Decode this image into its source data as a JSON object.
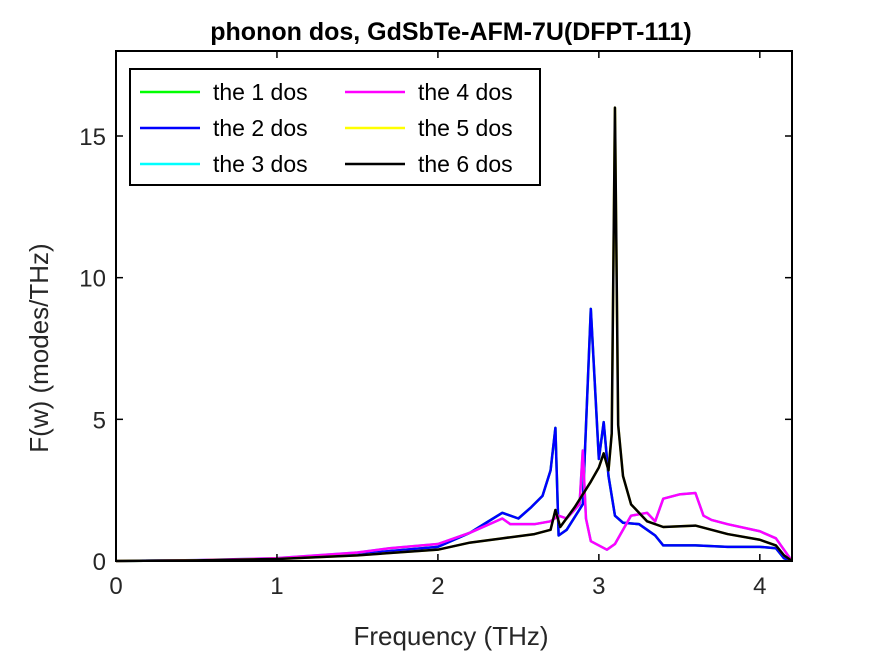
{
  "chart_data": {
    "type": "line",
    "title": "phonon dos, GdSbTe-AFM-7U(DFPT-111)",
    "xlabel": "Frequency (THz)",
    "ylabel": "F(w) (modes/THz)",
    "xlim": [
      0,
      4.2
    ],
    "ylim": [
      0,
      18
    ],
    "xticks": [
      0,
      1,
      2,
      3,
      4
    ],
    "yticks": [
      0,
      5,
      10,
      15
    ],
    "grid": false,
    "legend_position": "top-left",
    "series": [
      {
        "name": "the 1 dos",
        "color": "#00ff00",
        "x": [
          0,
          0.5,
          1,
          1.5,
          2,
          2.2,
          2.3,
          2.4,
          2.5,
          2.58,
          2.65,
          2.7,
          2.73,
          2.75,
          2.8,
          2.9,
          2.95,
          3.0,
          3.03,
          3.06,
          3.1,
          3.15,
          3.25,
          3.3,
          3.35,
          3.4,
          3.6,
          3.8,
          4.0,
          4.1,
          4.15,
          4.2
        ],
        "y": [
          0,
          0.02,
          0.08,
          0.25,
          0.5,
          1.0,
          1.35,
          1.7,
          1.5,
          1.9,
          2.3,
          3.2,
          4.7,
          0.9,
          1.1,
          2.0,
          8.9,
          3.6,
          4.9,
          3.0,
          1.6,
          1.35,
          1.3,
          1.1,
          0.9,
          0.55,
          0.55,
          0.5,
          0.5,
          0.45,
          0.1,
          0
        ]
      },
      {
        "name": "the 2 dos",
        "color": "#0000ff",
        "x": [
          0,
          0.5,
          1,
          1.5,
          2,
          2.2,
          2.3,
          2.4,
          2.5,
          2.58,
          2.65,
          2.7,
          2.73,
          2.75,
          2.8,
          2.9,
          2.95,
          3.0,
          3.03,
          3.06,
          3.1,
          3.15,
          3.25,
          3.3,
          3.35,
          3.4,
          3.6,
          3.8,
          4.0,
          4.1,
          4.15,
          4.2
        ],
        "y": [
          0,
          0.02,
          0.08,
          0.25,
          0.5,
          1.0,
          1.35,
          1.7,
          1.5,
          1.9,
          2.3,
          3.2,
          4.7,
          0.9,
          1.1,
          2.0,
          8.9,
          3.6,
          4.9,
          3.0,
          1.6,
          1.35,
          1.3,
          1.1,
          0.9,
          0.55,
          0.55,
          0.5,
          0.5,
          0.45,
          0.1,
          0
        ]
      },
      {
        "name": "the 3 dos",
        "color": "#00ffff",
        "x": [
          0,
          0.5,
          1,
          1.5,
          1.7,
          2,
          2.2,
          2.4,
          2.45,
          2.6,
          2.7,
          2.75,
          2.8,
          2.88,
          2.9,
          2.92,
          2.95,
          3.05,
          3.1,
          3.2,
          3.3,
          3.35,
          3.4,
          3.5,
          3.6,
          3.65,
          3.7,
          3.8,
          4.0,
          4.1,
          4.15,
          4.2
        ],
        "y": [
          0,
          0.03,
          0.1,
          0.3,
          0.45,
          0.6,
          1.0,
          1.5,
          1.3,
          1.3,
          1.4,
          1.6,
          1.5,
          2.0,
          3.9,
          1.5,
          0.7,
          0.4,
          0.6,
          1.6,
          1.7,
          1.4,
          2.2,
          2.35,
          2.4,
          1.6,
          1.45,
          1.3,
          1.05,
          0.8,
          0.4,
          0
        ]
      },
      {
        "name": "the 4 dos",
        "color": "#ff00ff",
        "x": [
          0,
          0.5,
          1,
          1.5,
          1.7,
          2,
          2.2,
          2.4,
          2.45,
          2.6,
          2.7,
          2.75,
          2.8,
          2.88,
          2.9,
          2.92,
          2.95,
          3.05,
          3.1,
          3.2,
          3.3,
          3.35,
          3.4,
          3.5,
          3.6,
          3.65,
          3.7,
          3.8,
          4.0,
          4.1,
          4.15,
          4.2
        ],
        "y": [
          0,
          0.03,
          0.1,
          0.3,
          0.45,
          0.6,
          1.0,
          1.5,
          1.3,
          1.3,
          1.4,
          1.6,
          1.5,
          2.0,
          3.9,
          1.5,
          0.7,
          0.4,
          0.6,
          1.6,
          1.7,
          1.4,
          2.2,
          2.35,
          2.4,
          1.6,
          1.45,
          1.3,
          1.05,
          0.8,
          0.4,
          0
        ]
      },
      {
        "name": "the 5 dos",
        "color": "#ffff00",
        "x": [
          0,
          0.5,
          1,
          1.5,
          2,
          2.2,
          2.4,
          2.6,
          2.7,
          2.73,
          2.76,
          2.85,
          2.95,
          3.0,
          3.03,
          3.06,
          3.08,
          3.1,
          3.12,
          3.15,
          3.2,
          3.3,
          3.4,
          3.6,
          3.8,
          4.0,
          4.1,
          4.15,
          4.2
        ],
        "y": [
          0,
          0.02,
          0.07,
          0.2,
          0.4,
          0.65,
          0.8,
          0.95,
          1.1,
          1.8,
          1.2,
          1.9,
          2.8,
          3.3,
          3.8,
          3.2,
          4.5,
          16.0,
          4.8,
          3.0,
          2.0,
          1.4,
          1.2,
          1.25,
          0.95,
          0.75,
          0.55,
          0.2,
          0
        ]
      },
      {
        "name": "the 6 dos",
        "color": "#000000",
        "x": [
          0,
          0.5,
          1,
          1.5,
          2,
          2.2,
          2.4,
          2.6,
          2.7,
          2.73,
          2.76,
          2.85,
          2.95,
          3.0,
          3.03,
          3.06,
          3.08,
          3.1,
          3.12,
          3.15,
          3.2,
          3.3,
          3.4,
          3.6,
          3.8,
          4.0,
          4.1,
          4.15,
          4.2
        ],
        "y": [
          0,
          0.02,
          0.07,
          0.2,
          0.4,
          0.65,
          0.8,
          0.95,
          1.1,
          1.8,
          1.2,
          1.9,
          2.8,
          3.3,
          3.8,
          3.2,
          4.5,
          16.0,
          4.8,
          3.0,
          2.0,
          1.4,
          1.2,
          1.25,
          0.95,
          0.75,
          0.55,
          0.2,
          0
        ]
      }
    ]
  }
}
